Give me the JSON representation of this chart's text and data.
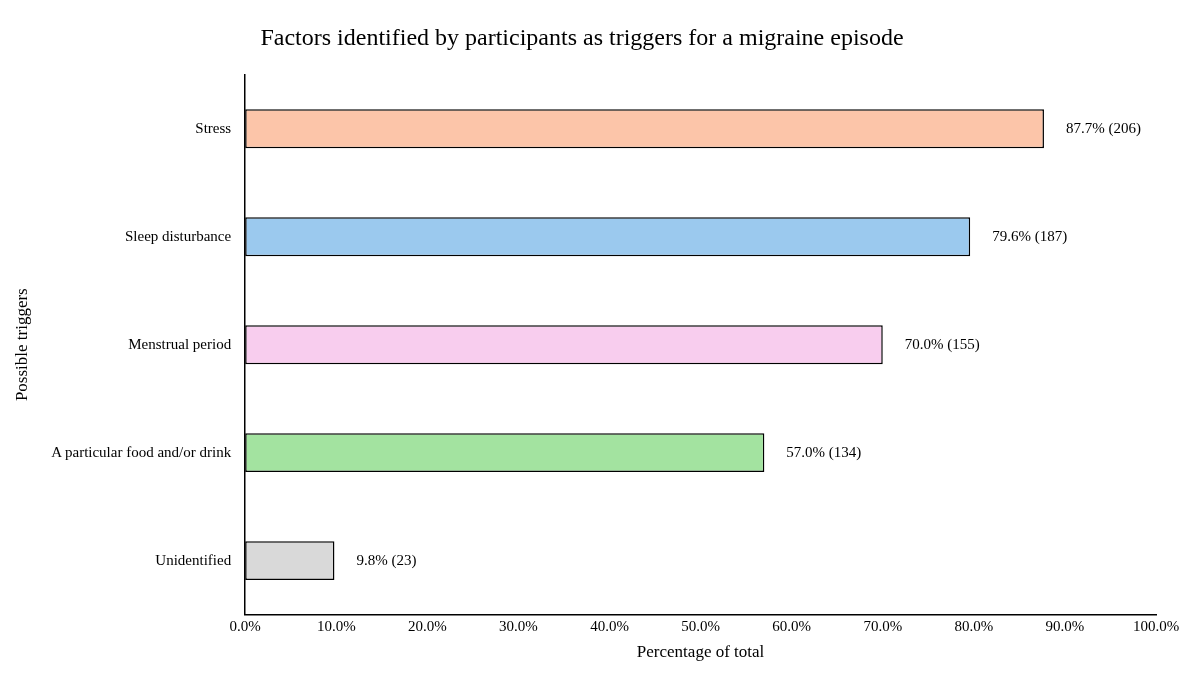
{
  "chart_data": {
    "type": "bar",
    "orientation": "horizontal",
    "title": "Factors identified by participants as triggers for a migraine episode",
    "xlabel": "Percentage of total",
    "ylabel": "Possible triggers",
    "categories": [
      "Stress",
      "Sleep disturbance",
      "Menstrual period",
      "A particular food and/or drink",
      "Unidentified"
    ],
    "values": [
      87.7,
      79.6,
      70.0,
      57.0,
      9.8
    ],
    "colors": [
      "#fcc5a9",
      "#9bc9ee",
      "#f8cdee",
      "#a3e3a0",
      "#d9d9d9"
    ],
    "value_labels": [
      "87.7% (206)",
      "79.6% (187)",
      "70.0% (155)",
      "57.0% (134)",
      "9.8% (23)"
    ],
    "xlim": [
      0,
      100
    ],
    "xticks": [
      {
        "value": 0,
        "label": "0.0%"
      },
      {
        "value": 10,
        "label": "10.0%"
      },
      {
        "value": 20,
        "label": "20.0%"
      },
      {
        "value": 30,
        "label": "30.0%"
      },
      {
        "value": 40,
        "label": "40.0%"
      },
      {
        "value": 50,
        "label": "50.0%"
      },
      {
        "value": 60,
        "label": "60.0%"
      },
      {
        "value": 70,
        "label": "70.0%"
      },
      {
        "value": 80,
        "label": "80.0%"
      },
      {
        "value": 90,
        "label": "90.0%"
      },
      {
        "value": 100,
        "label": "100.0%"
      }
    ],
    "grid": false
  }
}
